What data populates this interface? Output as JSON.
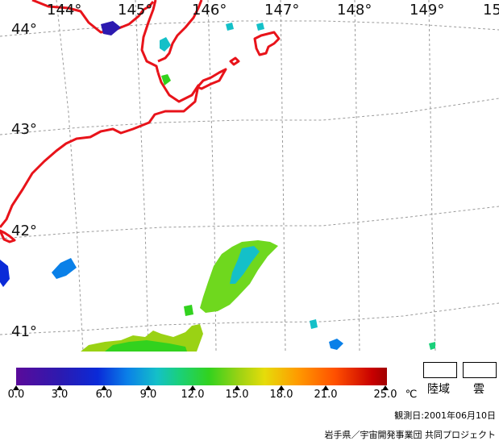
{
  "map": {
    "lon_labels": [
      "144°",
      "145°",
      "146°",
      "147°",
      "148°",
      "149°",
      "15"
    ],
    "lat_labels": [
      "44°",
      "43°",
      "42°",
      "41°"
    ],
    "coast_color": "#e8131a",
    "grid_color": "#9a9a9a"
  },
  "colorbar": {
    "tick_labels": [
      "0.0",
      "3.0",
      "6.0",
      "9.0",
      "12.0",
      "15.0",
      "18.0",
      "21.0",
      "25.0"
    ],
    "unit": "℃"
  },
  "legend": {
    "land_label": "陸域",
    "cloud_label": "雲"
  },
  "footer": {
    "observation_date": "観測日:2001年06月10日",
    "credit": "岩手県／宇宙開発事業団 共同プロジェクト"
  }
}
